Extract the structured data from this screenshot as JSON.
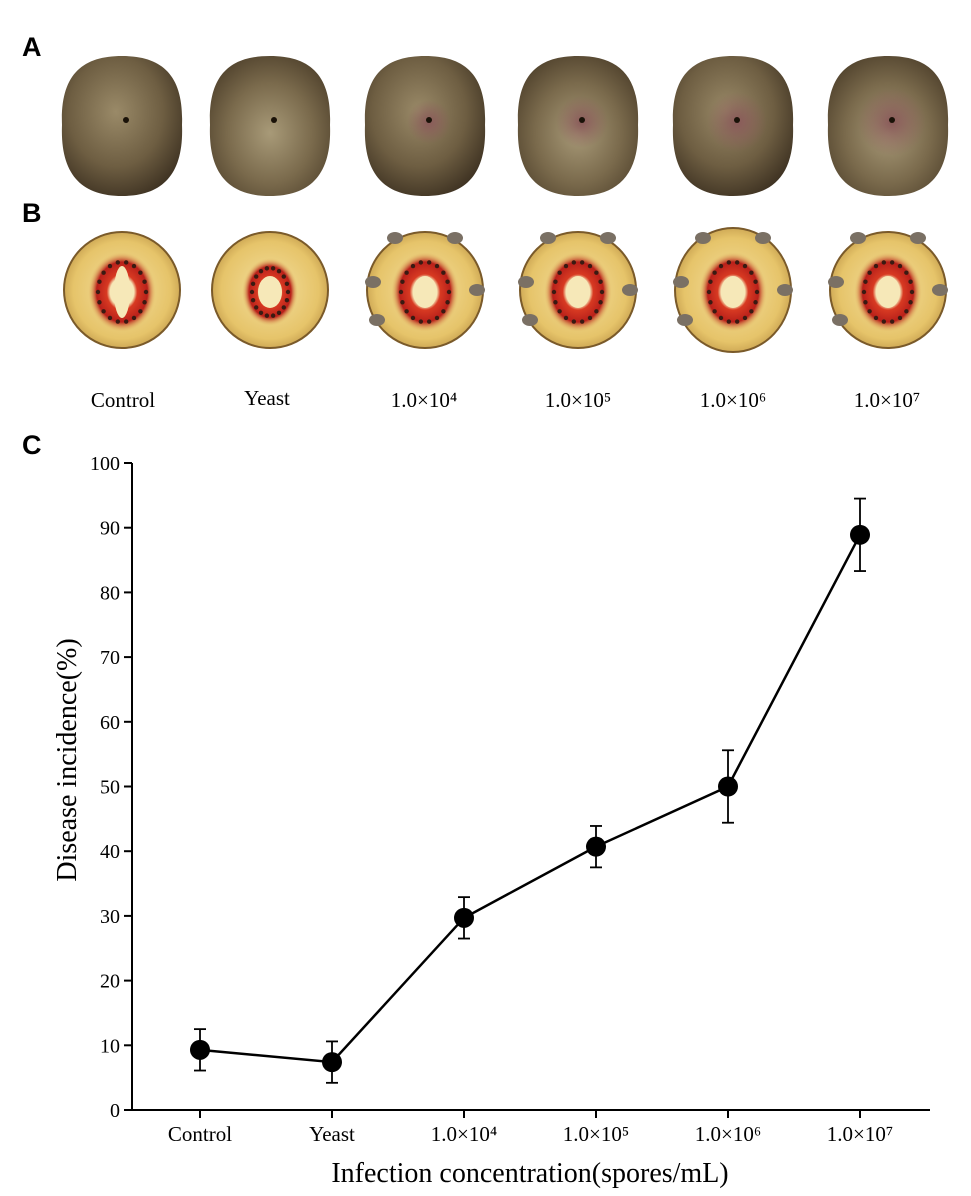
{
  "panels": {
    "a": "A",
    "b": "B",
    "c": "C"
  },
  "photo_captions": [
    "Control",
    "Yeast",
    "1.0×10⁴",
    "1.0×10⁵",
    "1.0×10⁶",
    "1.0×10⁷"
  ],
  "colors": {
    "kiwi_skin_dark": "#5a4a34",
    "kiwi_skin_light": "#8a7a58",
    "flesh": "#e8c870",
    "flesh_edge": "#c9a24a",
    "red_ring": "#c8281e",
    "core": "#f6e8b8",
    "seed": "#3a1a12"
  },
  "chart_data": {
    "type": "line",
    "categories": [
      "Control",
      "Yeast",
      "1.0×10⁴",
      "1.0×10⁵",
      "1.0×10⁶",
      "1.0×10⁷"
    ],
    "values": [
      9.3,
      7.4,
      29.7,
      40.7,
      50.0,
      88.9
    ],
    "errors": [
      3.2,
      3.2,
      3.2,
      3.2,
      5.6,
      5.6
    ],
    "xlabel": "Infection concentration(spores/mL)",
    "ylabel": "Disease incidence(%)",
    "ylim": [
      0,
      100
    ],
    "yticks": [
      "0",
      "10",
      "20",
      "30",
      "40",
      "50",
      "60",
      "70",
      "80",
      "90",
      "100"
    ],
    "grid": false
  }
}
